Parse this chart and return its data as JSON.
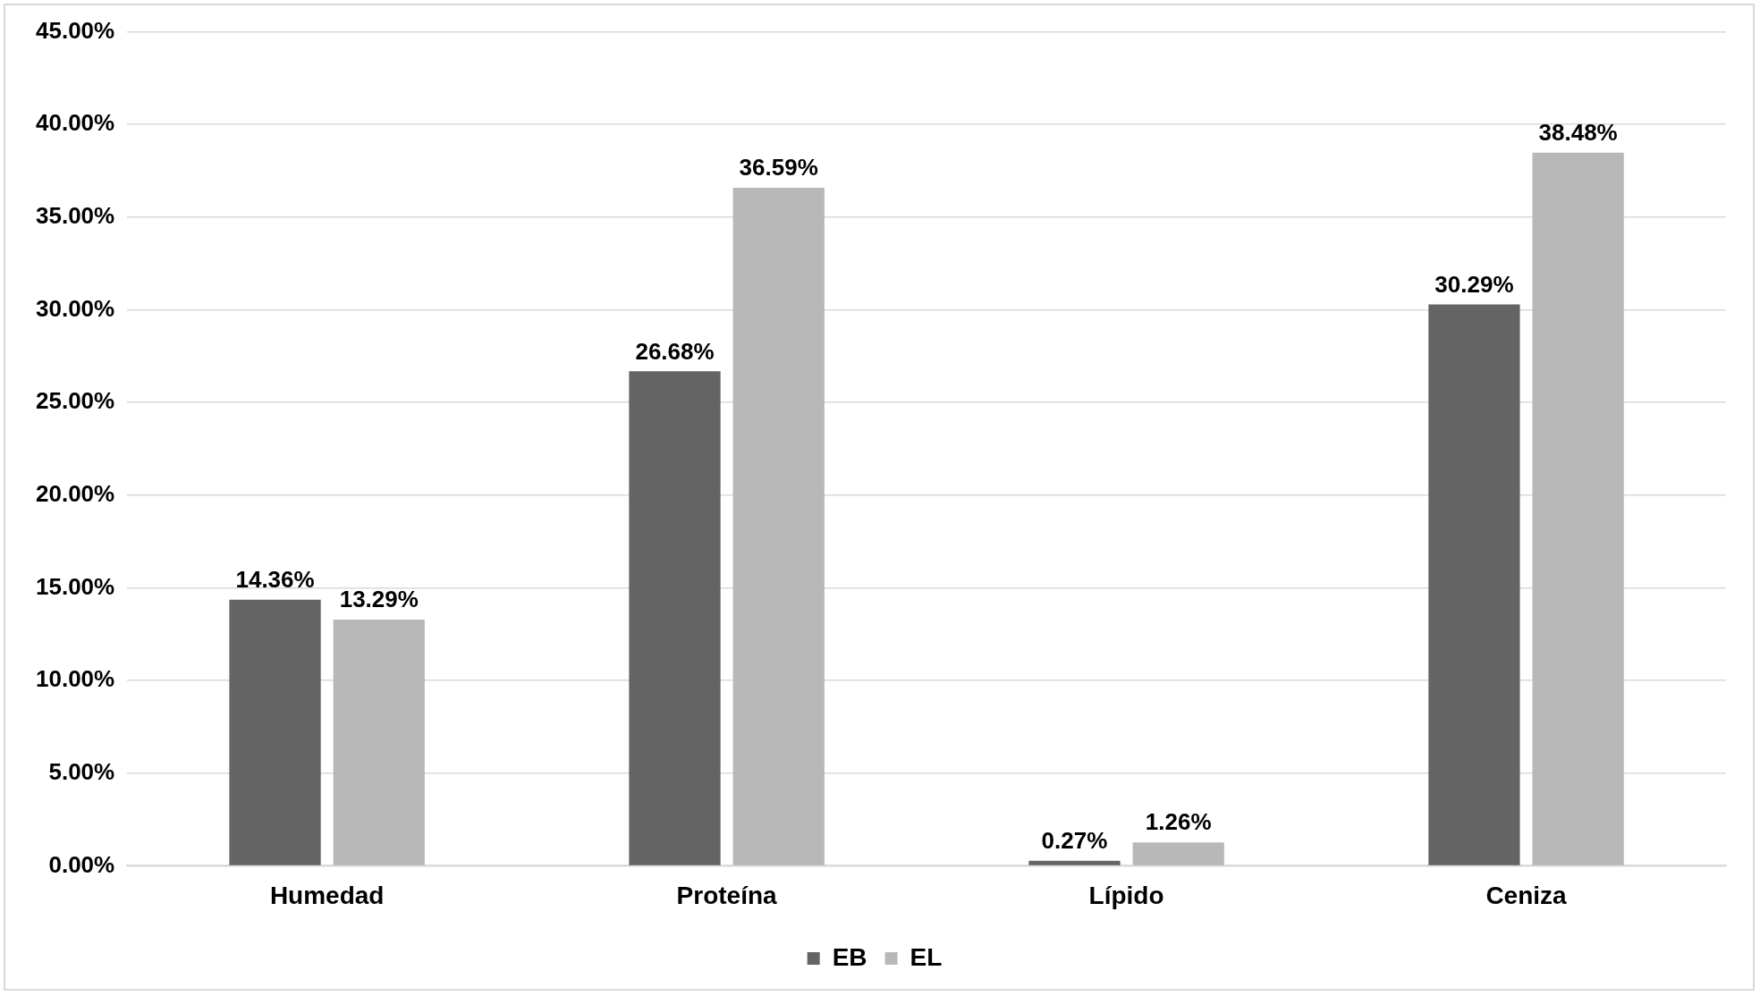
{
  "chart_data": {
    "type": "bar",
    "categories": [
      "Humedad",
      "Proteína",
      "Lípido",
      "Ceniza"
    ],
    "series": [
      {
        "name": "EB",
        "color": "#646464",
        "values": [
          14.36,
          26.68,
          0.27,
          30.29
        ],
        "value_labels": [
          "14.36%",
          "26.68%",
          "0.27%",
          "30.29%"
        ]
      },
      {
        "name": "EL",
        "color": "#b8b8b8",
        "values": [
          13.29,
          36.59,
          1.26,
          38.48
        ],
        "value_labels": [
          "13.29%",
          "36.59%",
          "1.26%",
          "38.48%"
        ]
      }
    ],
    "ylim": [
      0,
      45
    ],
    "yticks": [
      {
        "value": 0,
        "label": "0.00%"
      },
      {
        "value": 5,
        "label": "5.00%"
      },
      {
        "value": 10,
        "label": "10.00%"
      },
      {
        "value": 15,
        "label": "15.00%"
      },
      {
        "value": 20,
        "label": "20.00%"
      },
      {
        "value": 25,
        "label": "25.00%"
      },
      {
        "value": 30,
        "label": "30.00%"
      },
      {
        "value": 35,
        "label": "35.00%"
      },
      {
        "value": 40,
        "label": "40.00%"
      },
      {
        "value": 45,
        "label": "45.00%"
      }
    ],
    "grid": "y",
    "legend": "bottom"
  }
}
